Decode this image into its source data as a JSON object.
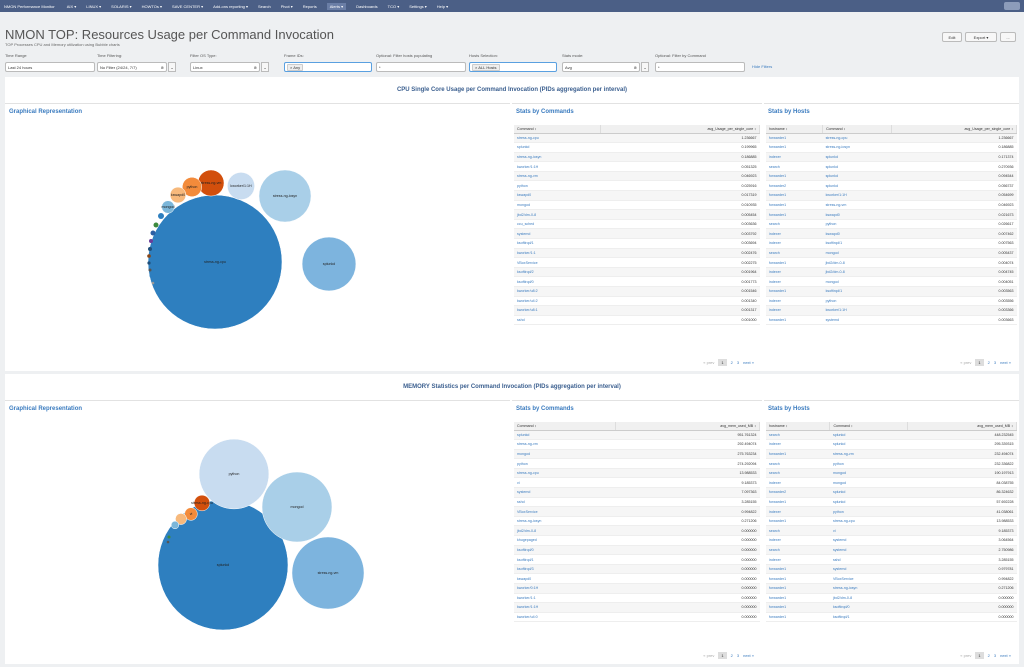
{
  "nav": {
    "brand": "NMON Performance Monitor",
    "items": [
      "AIX ▾",
      "LINUX ▾",
      "SOLARIS ▾",
      "HOWTOs ▾",
      "SAVE CENTER ▾",
      "Add-ons reporting ▾",
      "Search",
      "Pivot ▾",
      "Reports",
      "Alerts ▾",
      "Dashboards",
      "TCO ▾",
      "Settings ▾",
      "Help ▾"
    ],
    "active": "Alerts ▾",
    "user": "admin"
  },
  "page": {
    "title": "NMON TOP: Resources Usage per Command Invocation",
    "subtitle": "TOP Processes CPU and Memory utilization using Bubble charts",
    "edit": "Edit",
    "export": "Export ▾",
    "more": "..."
  },
  "filters": {
    "time_range": {
      "label": "Time Range",
      "value": "Last 24 hours"
    },
    "time_filtering": {
      "label": "Time Filtering:",
      "value": "No Filter (24/24, 7/7)"
    },
    "os_type": {
      "label": "Filter OS Type:",
      "value": "Linux"
    },
    "frame_ids": {
      "label": "Frame IDs:",
      "value": "Any"
    },
    "hosts_populating": {
      "label": "Optional: Filter hosts populating",
      "value": "*"
    },
    "hosts_selection": {
      "label": "Hosts Selection:",
      "value": "ALL Hosts"
    },
    "stats_mode": {
      "label": "Stats mode:",
      "value": "Avg"
    },
    "by_command": {
      "label": "Optional: Filter by Command",
      "value": "*"
    },
    "hide": "Hide Filters"
  },
  "cpu": {
    "section_title": "CPU Single Core Usage per Command Invocation (PIDs aggregation per interval)",
    "graph_title": "Graphical Representation",
    "cmd_title": "Stats by Commands",
    "hosts_title": "Stats by Hosts",
    "cmd_headers": [
      "Command ↕",
      "avg_Usage_per_single_core ↕"
    ],
    "cmd_rows": [
      [
        "stress-ng-cpu",
        "1.236667"
      ],
      [
        "splunkd",
        "0.199965"
      ],
      [
        "stress-ng-iosyn",
        "0.186885"
      ],
      [
        "kworker/1:1H",
        "0.051325"
      ],
      [
        "stress-ng-vm",
        "0.046923"
      ],
      [
        "python",
        "0.025916"
      ],
      [
        "kswapd0",
        "0.017319"
      ],
      [
        "mongod",
        "0.010935"
      ],
      [
        "jbd2/dm-0-8",
        "0.005454"
      ],
      [
        "ccu_sched",
        "0.003636"
      ],
      [
        "systemd",
        "0.003792"
      ],
      [
        "ksoftirqd/1",
        "0.003694"
      ],
      [
        "kworker/1:1",
        "0.002476"
      ],
      [
        "VBoxService",
        "0.002275"
      ],
      [
        "ksoftirqd/2",
        "0.001964"
      ],
      [
        "ksoftirqd/0",
        "0.001773"
      ],
      [
        "kworker/u8:2",
        "0.001546"
      ],
      [
        "kworker/u4:2",
        "0.001340"
      ],
      [
        "kworker/u8:1",
        "0.001317"
      ],
      [
        "sshd",
        "0.001000"
      ]
    ],
    "host_headers": [
      "hostname ↕",
      "Command ↕",
      "avg_Usage_per_single_core ↕"
    ],
    "host_rows": [
      [
        "forwarder1",
        "stress-ng-cpu",
        "1.236667"
      ],
      [
        "forwarder1",
        "stress-ng-iosyn",
        "0.186885"
      ],
      [
        "indexer",
        "splunkd",
        "0.171374"
      ],
      [
        "search",
        "splunkd",
        "0.270936"
      ],
      [
        "forwarder1",
        "splunkd",
        "0.094544"
      ],
      [
        "forwarder2",
        "splunkd",
        "0.056737"
      ],
      [
        "forwarder1",
        "kworker/1:1H",
        "0.054699"
      ],
      [
        "forwarder1",
        "stress-ng-vm",
        "0.046923"
      ],
      [
        "forwarder1",
        "kswapd0",
        "0.021673"
      ],
      [
        "search",
        "python",
        "0.026617"
      ],
      [
        "indexer",
        "kswapd0",
        "0.007462"
      ],
      [
        "indexer",
        "ksoftirqd/1",
        "0.007563"
      ],
      [
        "search",
        "mongod",
        "0.005437"
      ],
      [
        "forwarder1",
        "jbd2/dm-0-8",
        "0.004074"
      ],
      [
        "indexer",
        "jbd2/dm-0-8",
        "0.004745"
      ],
      [
        "indexer",
        "mongod",
        "0.004051"
      ],
      [
        "forwarder1",
        "ksoftirqd/1",
        "0.003563"
      ],
      [
        "indexer",
        "python",
        "0.003556"
      ],
      [
        "indexer",
        "kworker/1:1H",
        "0.003366"
      ],
      [
        "forwarder1",
        "systemd",
        "0.003663"
      ]
    ],
    "pager": {
      "prev": "« prev",
      "pages": [
        "1",
        "2",
        "3"
      ],
      "next": "next »"
    },
    "bubbles": [
      {
        "label": "stress-ng-cpu",
        "value": 1.236667
      },
      {
        "label": "splunkd",
        "value": 0.199965
      },
      {
        "label": "stress-ng-iosyn",
        "value": 0.186885
      },
      {
        "label": "kworker/1:1H",
        "value": 0.051325
      },
      {
        "label": "stress-ng-vm",
        "value": 0.046923
      },
      {
        "label": "python",
        "value": 0.025916
      },
      {
        "label": "kswapd0",
        "value": 0.017319
      },
      {
        "label": "mongod",
        "value": 0.010935
      }
    ]
  },
  "mem": {
    "section_title": "MEMORY Statistics per Command Invocation (PIDs aggregation per interval)",
    "graph_title": "Graphical Representation",
    "cmd_title": "Stats by Commands",
    "hosts_title": "Stats by Hosts",
    "cmd_headers": [
      "Command ↕",
      "avg_mem_used_MB ↕"
    ],
    "cmd_rows": [
      [
        "splunkd",
        "951.761324"
      ],
      [
        "stress-ng-vm",
        "292.494074"
      ],
      [
        "mongod",
        "275.763234"
      ],
      [
        "python",
        "274.292094"
      ],
      [
        "stress-ng-cpu",
        "13.988533"
      ],
      [
        "vi",
        "9.185373"
      ],
      [
        "systemd",
        "7.097363"
      ],
      [
        "sshd",
        "3.285155"
      ],
      [
        "VBoxService",
        "0.994822"
      ],
      [
        "stress-ng-iosyn",
        "0.271206"
      ],
      [
        "jbd2/dm-0-8",
        "0.000000"
      ],
      [
        "khugepaged",
        "0.000000"
      ],
      [
        "ksoftirqd/0",
        "0.000000"
      ],
      [
        "ksoftirqd/1",
        "0.000000"
      ],
      [
        "ksoftirqd/3",
        "0.000000"
      ],
      [
        "kswapd0",
        "0.000000"
      ],
      [
        "kworker/0:1H",
        "0.000000"
      ],
      [
        "kworker/1:1",
        "0.000000"
      ],
      [
        "kworker/1:1H",
        "0.000000"
      ],
      [
        "kworker/u4:0",
        "0.000000"
      ]
    ],
    "host_headers": [
      "hostname ↕",
      "Command ↕",
      "avg_mem_used_MB ↕"
    ],
    "host_rows": [
      [
        "search",
        "splunkd",
        "448.232545"
      ],
      [
        "indexer",
        "splunkd",
        "295.339315"
      ],
      [
        "forwarder1",
        "stress-ng-vm",
        "232.494074"
      ],
      [
        "search",
        "python",
        "232.336822"
      ],
      [
        "search",
        "mongod",
        "190.197913"
      ],
      [
        "indexer",
        "mongod",
        "84.038755"
      ],
      [
        "forwarder2",
        "splunkd",
        "86.324632"
      ],
      [
        "forwarder1",
        "splunkd",
        "57.692228"
      ],
      [
        "indexer",
        "python",
        "41.038061"
      ],
      [
        "forwarder1",
        "stress-ng-cpu",
        "13.988533"
      ],
      [
        "search",
        "vi",
        "9.185373"
      ],
      [
        "indexer",
        "systemd",
        "3.064564"
      ],
      [
        "search",
        "systemd",
        "2.750986"
      ],
      [
        "indexer",
        "sshd",
        "3.285155"
      ],
      [
        "forwarder1",
        "systemd",
        "0.979781"
      ],
      [
        "forwarder1",
        "VBoxService",
        "0.994822"
      ],
      [
        "forwarder1",
        "stress-ng-iosyn",
        "0.271206"
      ],
      [
        "forwarder1",
        "jbd2/dm-0-8",
        "0.000000"
      ],
      [
        "forwarder1",
        "ksoftirqd/0",
        "0.000000"
      ],
      [
        "forwarder1",
        "ksoftirqd/1",
        "0.000000"
      ]
    ],
    "pager": {
      "prev": "« prev",
      "pages": [
        "1",
        "2",
        "3"
      ],
      "next": "next »"
    },
    "bubbles": [
      {
        "label": "splunkd",
        "value": 951.761324
      },
      {
        "label": "python",
        "value": 274.292094
      },
      {
        "label": "mongod",
        "value": 275.763234
      },
      {
        "label": "stress-ng-vm",
        "value": 292.494074
      },
      {
        "label": "stress-ng-cpu",
        "value": 13.988533
      },
      {
        "label": "vi",
        "value": 9.185373
      },
      {
        "label": "systemd",
        "value": 7.097363
      },
      {
        "label": "sshd",
        "value": 3.285155
      }
    ]
  }
}
